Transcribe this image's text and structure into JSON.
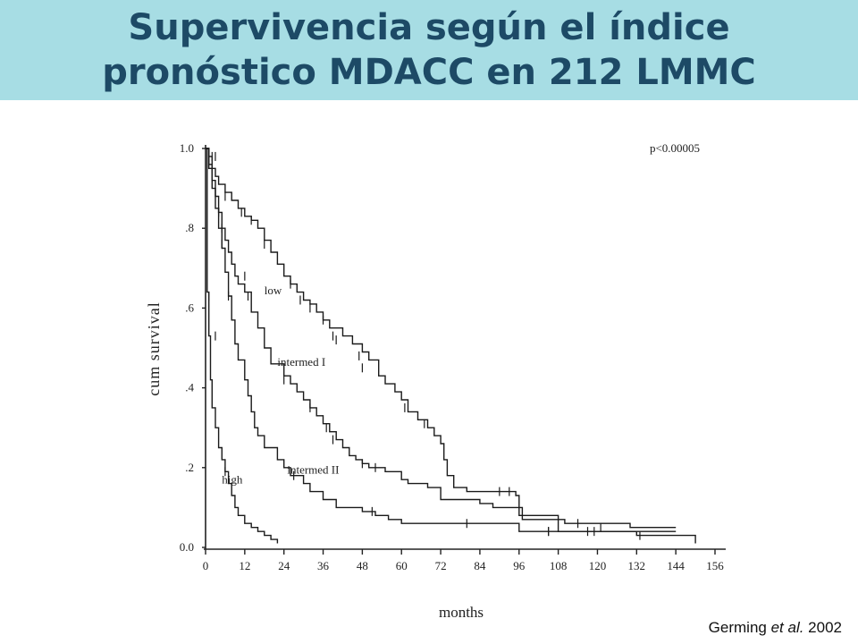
{
  "slide": {
    "title_line1": "Supervivencia según el índice",
    "title_line2": "pronóstico MDACC en 212 LMMC",
    "citation_author": "Germing ",
    "citation_etal": "et al.",
    "citation_year": " 2002",
    "background_color": "#ffffff",
    "title_band_color": "#a7dde4",
    "title_color": "#1d4a66"
  },
  "chart_data": {
    "type": "line",
    "title": "",
    "xlabel": "months",
    "ylabel": "cum survival",
    "xlim": [
      0,
      156
    ],
    "ylim": [
      0,
      1
    ],
    "x_ticks": [
      0,
      12,
      24,
      36,
      48,
      60,
      72,
      84,
      96,
      108,
      120,
      132,
      144,
      156
    ],
    "y_ticks": [
      {
        "value": 1.0,
        "label": "1.0"
      },
      {
        "value": 0.8,
        "label": ".8"
      },
      {
        "value": 0.6,
        "label": ".6"
      },
      {
        "value": 0.4,
        "label": ".4"
      },
      {
        "value": 0.2,
        "label": ".2"
      },
      {
        "value": 0.0,
        "label": "0.0"
      }
    ],
    "annotation": "p<0.00005",
    "grid": false,
    "series": [
      {
        "name": "low",
        "label_at": [
          18,
          0.635
        ],
        "points": [
          [
            0,
            1.0
          ],
          [
            1,
            0.98
          ],
          [
            2,
            0.95
          ],
          [
            3,
            0.93
          ],
          [
            4,
            0.91
          ],
          [
            6,
            0.89
          ],
          [
            8,
            0.87
          ],
          [
            10,
            0.85
          ],
          [
            12,
            0.83
          ],
          [
            14,
            0.82
          ],
          [
            16,
            0.8
          ],
          [
            18,
            0.77
          ],
          [
            20,
            0.74
          ],
          [
            22,
            0.71
          ],
          [
            24,
            0.68
          ],
          [
            26,
            0.66
          ],
          [
            28,
            0.64
          ],
          [
            30,
            0.62
          ],
          [
            32,
            0.61
          ],
          [
            34,
            0.59
          ],
          [
            36,
            0.57
          ],
          [
            38,
            0.55
          ],
          [
            42,
            0.53
          ],
          [
            45,
            0.51
          ],
          [
            48,
            0.49
          ],
          [
            50,
            0.47
          ],
          [
            53,
            0.43
          ],
          [
            55,
            0.41
          ],
          [
            58,
            0.39
          ],
          [
            60,
            0.37
          ],
          [
            62,
            0.34
          ],
          [
            65,
            0.32
          ],
          [
            68,
            0.3
          ],
          [
            70,
            0.28
          ],
          [
            72,
            0.26
          ],
          [
            73,
            0.22
          ],
          [
            74,
            0.18
          ],
          [
            76,
            0.15
          ],
          [
            80,
            0.14
          ],
          [
            95,
            0.13
          ],
          [
            96,
            0.1
          ],
          [
            97,
            0.07
          ],
          [
            110,
            0.06
          ],
          [
            130,
            0.05
          ],
          [
            144,
            0.05
          ]
        ],
        "censored": [
          [
            3,
            0.98
          ],
          [
            6,
            0.88
          ],
          [
            11,
            0.84
          ],
          [
            14,
            0.82
          ],
          [
            18,
            0.76
          ],
          [
            26,
            0.66
          ],
          [
            29,
            0.62
          ],
          [
            32,
            0.6
          ],
          [
            36,
            0.57
          ],
          [
            39,
            0.53
          ],
          [
            40,
            0.52
          ],
          [
            47,
            0.48
          ],
          [
            48,
            0.45
          ],
          [
            61,
            0.35
          ],
          [
            67,
            0.31
          ],
          [
            90,
            0.14
          ],
          [
            93,
            0.14
          ],
          [
            114,
            0.06
          ],
          [
            121,
            0.05
          ]
        ]
      },
      {
        "name": "intermed I",
        "label_at": [
          22,
          0.455
        ],
        "points": [
          [
            0,
            1.0
          ],
          [
            1,
            0.96
          ],
          [
            2,
            0.92
          ],
          [
            3,
            0.88
          ],
          [
            4,
            0.84
          ],
          [
            5,
            0.8
          ],
          [
            6,
            0.77
          ],
          [
            7,
            0.74
          ],
          [
            8,
            0.71
          ],
          [
            9,
            0.68
          ],
          [
            10,
            0.66
          ],
          [
            12,
            0.64
          ],
          [
            14,
            0.59
          ],
          [
            16,
            0.55
          ],
          [
            18,
            0.5
          ],
          [
            20,
            0.46
          ],
          [
            24,
            0.43
          ],
          [
            26,
            0.41
          ],
          [
            28,
            0.39
          ],
          [
            30,
            0.37
          ],
          [
            32,
            0.35
          ],
          [
            34,
            0.33
          ],
          [
            36,
            0.31
          ],
          [
            38,
            0.29
          ],
          [
            40,
            0.27
          ],
          [
            42,
            0.25
          ],
          [
            44,
            0.23
          ],
          [
            46,
            0.22
          ],
          [
            48,
            0.21
          ],
          [
            50,
            0.2
          ],
          [
            55,
            0.19
          ],
          [
            60,
            0.17
          ],
          [
            62,
            0.16
          ],
          [
            68,
            0.15
          ],
          [
            72,
            0.12
          ],
          [
            84,
            0.11
          ],
          [
            88,
            0.1
          ],
          [
            96,
            0.08
          ],
          [
            108,
            0.04
          ],
          [
            144,
            0.04
          ]
        ],
        "censored": [
          [
            2,
            0.98
          ],
          [
            4,
            0.84
          ],
          [
            5,
            0.8
          ],
          [
            12,
            0.68
          ],
          [
            13,
            0.63
          ],
          [
            24,
            0.42
          ],
          [
            32,
            0.35
          ],
          [
            37,
            0.3
          ],
          [
            39,
            0.27
          ],
          [
            48,
            0.21
          ],
          [
            52,
            0.2
          ],
          [
            105,
            0.04
          ],
          [
            119,
            0.04
          ]
        ]
      },
      {
        "name": "intermed II",
        "label_at": [
          25,
          0.185
        ],
        "points": [
          [
            0,
            1.0
          ],
          [
            1,
            0.95
          ],
          [
            2,
            0.9
          ],
          [
            3,
            0.85
          ],
          [
            4,
            0.8
          ],
          [
            5,
            0.75
          ],
          [
            6,
            0.69
          ],
          [
            7,
            0.63
          ],
          [
            8,
            0.57
          ],
          [
            9,
            0.51
          ],
          [
            10,
            0.47
          ],
          [
            12,
            0.42
          ],
          [
            13,
            0.38
          ],
          [
            14,
            0.34
          ],
          [
            15,
            0.3
          ],
          [
            16,
            0.28
          ],
          [
            18,
            0.25
          ],
          [
            22,
            0.22
          ],
          [
            24,
            0.2
          ],
          [
            26,
            0.18
          ],
          [
            30,
            0.16
          ],
          [
            32,
            0.14
          ],
          [
            36,
            0.12
          ],
          [
            40,
            0.1
          ],
          [
            48,
            0.09
          ],
          [
            52,
            0.08
          ],
          [
            56,
            0.07
          ],
          [
            58,
            0.07
          ],
          [
            60,
            0.06
          ],
          [
            84,
            0.06
          ],
          [
            96,
            0.04
          ],
          [
            108,
            0.04
          ],
          [
            132,
            0.03
          ],
          [
            144,
            0.03
          ],
          [
            150,
            0.01
          ]
        ],
        "censored": [
          [
            2,
            0.95
          ],
          [
            5,
            0.76
          ],
          [
            7,
            0.63
          ],
          [
            27,
            0.18
          ],
          [
            51,
            0.09
          ],
          [
            80,
            0.06
          ],
          [
            105,
            0.04
          ],
          [
            117,
            0.04
          ],
          [
            133,
            0.03
          ]
        ]
      },
      {
        "name": "high",
        "label_at": [
          5,
          0.16
        ],
        "points": [
          [
            0,
            1.0
          ],
          [
            0.5,
            0.64
          ],
          [
            1,
            0.53
          ],
          [
            1.5,
            0.42
          ],
          [
            2,
            0.35
          ],
          [
            3,
            0.3
          ],
          [
            4,
            0.25
          ],
          [
            5,
            0.22
          ],
          [
            6,
            0.19
          ],
          [
            7,
            0.16
          ],
          [
            8,
            0.13
          ],
          [
            9,
            0.1
          ],
          [
            10,
            0.08
          ],
          [
            12,
            0.06
          ],
          [
            14,
            0.05
          ],
          [
            16,
            0.04
          ],
          [
            18,
            0.03
          ],
          [
            20,
            0.02
          ],
          [
            22,
            0.01
          ]
        ],
        "censored": [
          [
            1,
            0.63
          ],
          [
            3,
            0.53
          ],
          [
            6,
            0.19
          ]
        ]
      }
    ]
  }
}
